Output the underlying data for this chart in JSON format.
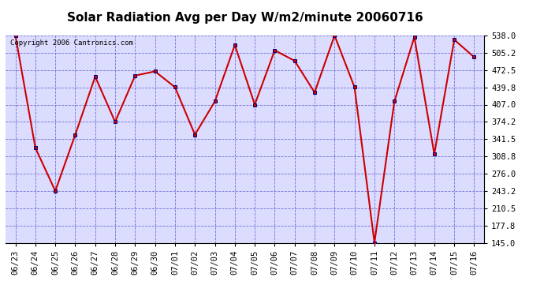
{
  "title": "Solar Radiation Avg per Day W/m2/minute 20060716",
  "copyright": "Copyright 2006 Cantronics.com",
  "dates": [
    "06/23",
    "06/24",
    "06/25",
    "06/26",
    "06/27",
    "06/28",
    "06/29",
    "06/30",
    "07/01",
    "07/02",
    "07/03",
    "07/04",
    "07/05",
    "07/06",
    "07/07",
    "07/08",
    "07/09",
    "07/10",
    "07/11",
    "07/12",
    "07/13",
    "07/14",
    "07/15",
    "07/16"
  ],
  "values": [
    538.0,
    325.0,
    243.2,
    350.0,
    460.0,
    374.2,
    462.0,
    470.0,
    440.0,
    350.0,
    413.0,
    520.0,
    407.0,
    510.0,
    490.0,
    430.0,
    538.0,
    440.0,
    145.0,
    413.0,
    535.0,
    313.0,
    530.0,
    497.0
  ],
  "ylim": [
    145.0,
    538.0
  ],
  "yticks": [
    145.0,
    177.8,
    210.5,
    243.2,
    276.0,
    308.8,
    341.5,
    374.2,
    407.0,
    439.8,
    472.5,
    505.2,
    538.0
  ],
  "line_color": "#cc0000",
  "marker_color": "#cc0000",
  "marker_edge_color": "#000080",
  "outer_bg": "#ffffff",
  "plot_bg_color": "#dcdcff",
  "grid_color": "#5555cc",
  "title_fontsize": 11,
  "copyright_fontsize": 6.5,
  "tick_fontsize": 7.5
}
